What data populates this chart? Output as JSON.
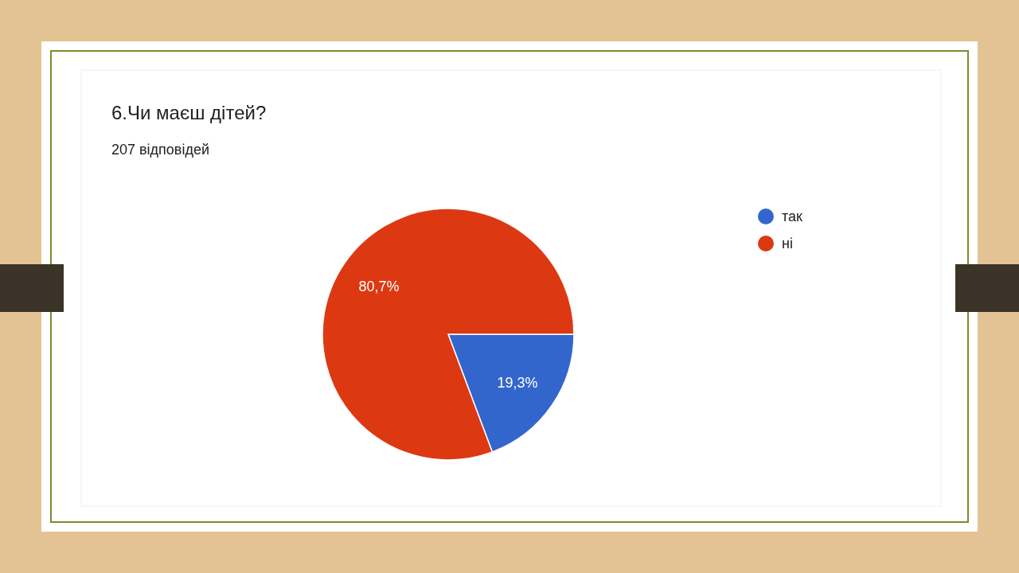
{
  "chart_data": {
    "type": "pie",
    "title": "6.Чи маєш дітей?",
    "subtitle": "207 відповідей",
    "categories": [
      "так",
      "ні"
    ],
    "values": [
      19.3,
      80.7
    ],
    "colors": [
      "#3366cc",
      "#dc3912"
    ],
    "value_labels": [
      "19,3%",
      "80,7%"
    ],
    "legend": "top right"
  }
}
